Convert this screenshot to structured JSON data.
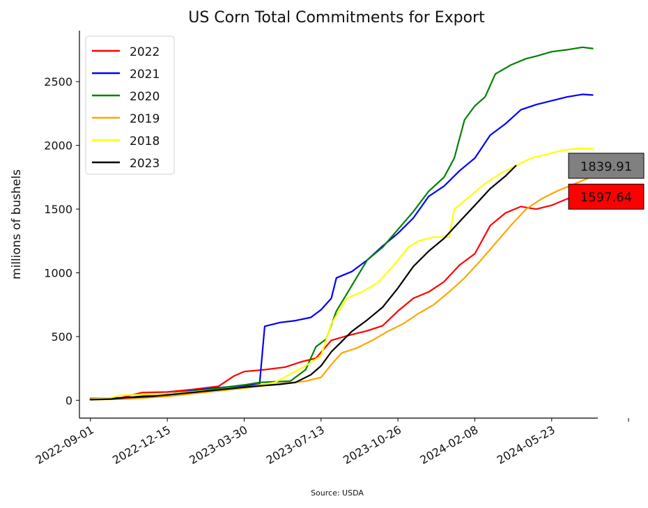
{
  "chart_data": {
    "type": "line",
    "title": "US Corn Total Commitments for Export",
    "xlabel": "",
    "ylabel": "millions of bushels",
    "source": "Source: USDA",
    "xlim": [
      "2022-08-17",
      "2024-07-25"
    ],
    "ylim": [
      -140,
      2900
    ],
    "grid": false,
    "legend_position": "upper-left",
    "x_ticks": [
      "2022-09-01",
      "2022-12-15",
      "2023-03-30",
      "2023-07-13",
      "2023-10-26",
      "2024-02-08",
      "2024-05-23"
    ],
    "y_ticks": [
      0,
      500,
      1000,
      1500,
      2000,
      2500
    ],
    "y_tick_labels": [
      "0",
      "500",
      "1000",
      "1500",
      "2000",
      "2500"
    ],
    "series": [
      {
        "name": "2022",
        "color": "#ff0000",
        "points": [
          [
            "2022-09-01",
            15
          ],
          [
            "2022-10-13",
            20
          ],
          [
            "2022-11-10",
            60
          ],
          [
            "2022-12-15",
            65
          ],
          [
            "2023-01-19",
            85
          ],
          [
            "2023-02-23",
            110
          ],
          [
            "2023-03-16",
            190
          ],
          [
            "2023-03-30",
            225
          ],
          [
            "2023-04-27",
            240
          ],
          [
            "2023-05-25",
            260
          ],
          [
            "2023-06-15",
            300
          ],
          [
            "2023-07-06",
            330
          ],
          [
            "2023-07-27",
            470
          ],
          [
            "2023-08-17",
            505
          ],
          [
            "2023-09-14",
            545
          ],
          [
            "2023-10-05",
            585
          ],
          [
            "2023-10-26",
            700
          ],
          [
            "2023-11-16",
            800
          ],
          [
            "2023-12-07",
            850
          ],
          [
            "2023-12-28",
            930
          ],
          [
            "2024-01-18",
            1060
          ],
          [
            "2024-02-08",
            1150
          ],
          [
            "2024-02-29",
            1370
          ],
          [
            "2024-03-21",
            1470
          ],
          [
            "2024-04-11",
            1520
          ],
          [
            "2024-05-02",
            1500
          ],
          [
            "2024-05-23",
            1530
          ],
          [
            "2024-06-13",
            1580
          ],
          [
            "2024-07-04",
            1597.64
          ]
        ]
      },
      {
        "name": "2021",
        "color": "#0000ff",
        "points": [
          [
            "2022-09-01",
            10
          ],
          [
            "2022-10-20",
            20
          ],
          [
            "2022-12-15",
            50
          ],
          [
            "2023-02-16",
            95
          ],
          [
            "2023-03-30",
            115
          ],
          [
            "2023-04-20",
            125
          ],
          [
            "2023-04-27",
            580
          ],
          [
            "2023-05-18",
            610
          ],
          [
            "2023-06-08",
            625
          ],
          [
            "2023-06-29",
            650
          ],
          [
            "2023-07-13",
            710
          ],
          [
            "2023-07-27",
            800
          ],
          [
            "2023-08-03",
            960
          ],
          [
            "2023-08-24",
            1010
          ],
          [
            "2023-09-14",
            1100
          ],
          [
            "2023-10-05",
            1210
          ],
          [
            "2023-10-26",
            1310
          ],
          [
            "2023-11-16",
            1430
          ],
          [
            "2023-12-07",
            1600
          ],
          [
            "2023-12-28",
            1680
          ],
          [
            "2024-01-18",
            1800
          ],
          [
            "2024-02-08",
            1900
          ],
          [
            "2024-02-29",
            2080
          ],
          [
            "2024-03-21",
            2170
          ],
          [
            "2024-04-11",
            2280
          ],
          [
            "2024-05-02",
            2320
          ],
          [
            "2024-05-23",
            2350
          ],
          [
            "2024-06-13",
            2380
          ],
          [
            "2024-07-04",
            2400
          ],
          [
            "2024-07-18",
            2395
          ]
        ]
      },
      {
        "name": "2020",
        "color": "#008000",
        "points": [
          [
            "2022-09-01",
            10
          ],
          [
            "2022-10-20",
            15
          ],
          [
            "2022-12-15",
            45
          ],
          [
            "2023-02-16",
            90
          ],
          [
            "2023-03-30",
            120
          ],
          [
            "2023-04-20",
            140
          ],
          [
            "2023-05-11",
            145
          ],
          [
            "2023-06-01",
            150
          ],
          [
            "2023-06-22",
            240
          ],
          [
            "2023-07-06",
            420
          ],
          [
            "2023-07-20",
            480
          ],
          [
            "2023-08-03",
            700
          ],
          [
            "2023-08-24",
            900
          ],
          [
            "2023-09-14",
            1100
          ],
          [
            "2023-10-05",
            1200
          ],
          [
            "2023-10-26",
            1340
          ],
          [
            "2023-11-16",
            1480
          ],
          [
            "2023-12-07",
            1640
          ],
          [
            "2023-12-28",
            1750
          ],
          [
            "2024-01-11",
            1900
          ],
          [
            "2024-01-25",
            2200
          ],
          [
            "2024-02-08",
            2310
          ],
          [
            "2024-02-22",
            2380
          ],
          [
            "2024-03-07",
            2560
          ],
          [
            "2024-03-28",
            2630
          ],
          [
            "2024-04-18",
            2680
          ],
          [
            "2024-05-02",
            2700
          ],
          [
            "2024-05-23",
            2735
          ],
          [
            "2024-06-13",
            2750
          ],
          [
            "2024-07-04",
            2770
          ],
          [
            "2024-07-18",
            2760
          ]
        ]
      },
      {
        "name": "2019",
        "color": "#ffa500",
        "points": [
          [
            "2022-09-01",
            5
          ],
          [
            "2022-10-20",
            10
          ],
          [
            "2022-12-15",
            30
          ],
          [
            "2023-02-16",
            70
          ],
          [
            "2023-03-30",
            95
          ],
          [
            "2023-05-11",
            125
          ],
          [
            "2023-06-22",
            150
          ],
          [
            "2023-07-13",
            180
          ],
          [
            "2023-07-27",
            280
          ],
          [
            "2023-08-10",
            370
          ],
          [
            "2023-08-31",
            410
          ],
          [
            "2023-09-21",
            470
          ],
          [
            "2023-10-12",
            540
          ],
          [
            "2023-11-02",
            600
          ],
          [
            "2023-11-23",
            680
          ],
          [
            "2023-12-14",
            750
          ],
          [
            "2024-01-04",
            850
          ],
          [
            "2024-01-25",
            960
          ],
          [
            "2024-02-15",
            1090
          ],
          [
            "2024-03-07",
            1230
          ],
          [
            "2024-03-28",
            1370
          ],
          [
            "2024-04-18",
            1500
          ],
          [
            "2024-05-09",
            1580
          ],
          [
            "2024-05-30",
            1640
          ],
          [
            "2024-06-20",
            1690
          ],
          [
            "2024-07-11",
            1740
          ],
          [
            "2024-07-18",
            1760
          ]
        ]
      },
      {
        "name": "2018",
        "color": "#ffff00",
        "points": [
          [
            "2022-09-01",
            10
          ],
          [
            "2022-09-29",
            20
          ],
          [
            "2022-10-13",
            40
          ],
          [
            "2022-12-15",
            50
          ],
          [
            "2023-02-16",
            80
          ],
          [
            "2023-03-30",
            100
          ],
          [
            "2023-05-11",
            140
          ],
          [
            "2023-06-22",
            270
          ],
          [
            "2023-07-13",
            350
          ],
          [
            "2023-07-27",
            600
          ],
          [
            "2023-08-17",
            800
          ],
          [
            "2023-09-07",
            850
          ],
          [
            "2023-09-28",
            920
          ],
          [
            "2023-10-19",
            1050
          ],
          [
            "2023-11-09",
            1200
          ],
          [
            "2023-11-23",
            1250
          ],
          [
            "2023-12-14",
            1280
          ],
          [
            "2024-01-04",
            1280
          ],
          [
            "2024-01-11",
            1500
          ],
          [
            "2024-02-01",
            1600
          ],
          [
            "2024-02-22",
            1700
          ],
          [
            "2024-03-14",
            1780
          ],
          [
            "2024-04-04",
            1840
          ],
          [
            "2024-04-25",
            1900
          ],
          [
            "2024-05-16",
            1930
          ],
          [
            "2024-06-06",
            1960
          ],
          [
            "2024-06-27",
            1975
          ],
          [
            "2024-07-18",
            1975
          ]
        ]
      },
      {
        "name": "2023",
        "color": "#000000",
        "points": [
          [
            "2022-09-01",
            5
          ],
          [
            "2022-09-29",
            10
          ],
          [
            "2022-10-20",
            20
          ],
          [
            "2022-11-24",
            30
          ],
          [
            "2022-12-29",
            50
          ],
          [
            "2023-02-02",
            70
          ],
          [
            "2023-03-09",
            90
          ],
          [
            "2023-04-13",
            110
          ],
          [
            "2023-05-18",
            125
          ],
          [
            "2023-06-08",
            140
          ],
          [
            "2023-06-29",
            200
          ],
          [
            "2023-07-13",
            270
          ],
          [
            "2023-07-27",
            380
          ],
          [
            "2023-08-10",
            460
          ],
          [
            "2023-08-24",
            540
          ],
          [
            "2023-09-14",
            630
          ],
          [
            "2023-10-05",
            730
          ],
          [
            "2023-10-26",
            880
          ],
          [
            "2023-11-16",
            1050
          ],
          [
            "2023-12-07",
            1170
          ],
          [
            "2023-12-28",
            1270
          ],
          [
            "2024-01-18",
            1400
          ],
          [
            "2024-02-08",
            1530
          ],
          [
            "2024-02-29",
            1660
          ],
          [
            "2024-03-21",
            1760
          ],
          [
            "2024-04-04",
            1839.91
          ]
        ]
      }
    ],
    "annotations": [
      {
        "text": "1839.91",
        "value": 1839.91,
        "background": "#808080"
      },
      {
        "text": "1597.64",
        "value": 1597.64,
        "background": "#ff0000"
      }
    ]
  }
}
